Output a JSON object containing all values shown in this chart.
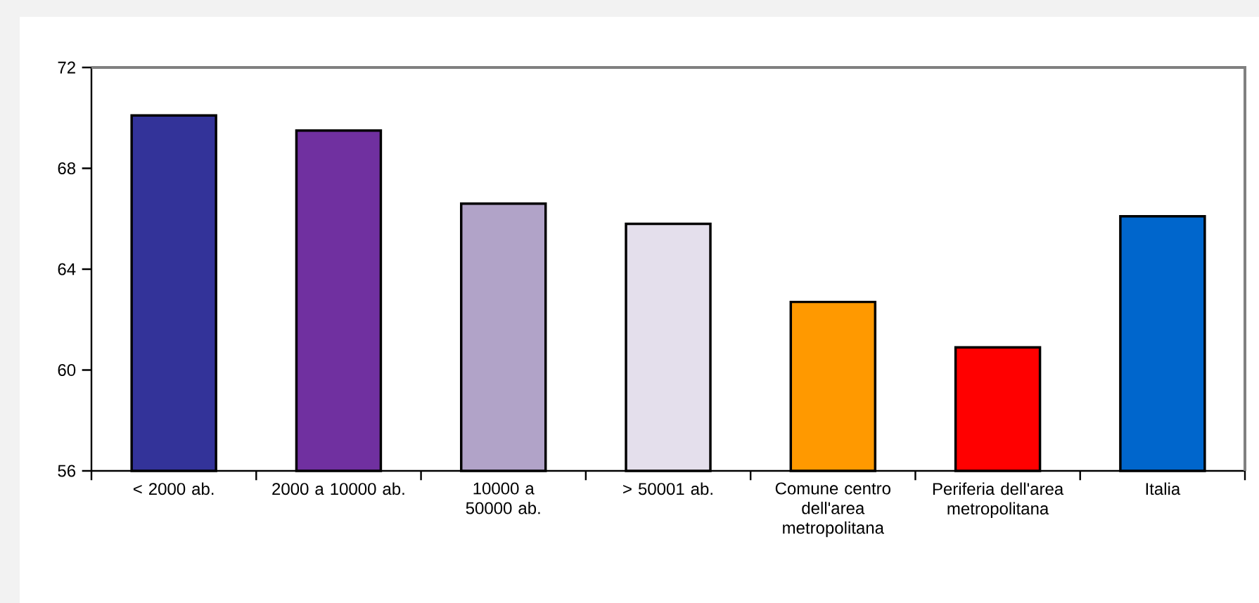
{
  "chart_data": {
    "type": "bar",
    "categories": [
      "< 2000 ab.",
      "2000 a 10000 ab.",
      "10000 a 50000 ab.",
      "> 50001 ab.",
      "Comune centro dell'area metropolitana",
      "Periferia dell'area metropolitana",
      "Italia"
    ],
    "values": [
      70.1,
      69.5,
      66.6,
      65.8,
      62.7,
      60.9,
      66.1
    ],
    "colors": [
      "#333399",
      "#7030a0",
      "#b1a3c8",
      "#e4dfec",
      "#ff9900",
      "#ff0000",
      "#0066cc"
    ],
    "ylim": [
      56,
      72
    ],
    "yticks": [
      56,
      60,
      64,
      68,
      72
    ],
    "grid": false
  }
}
